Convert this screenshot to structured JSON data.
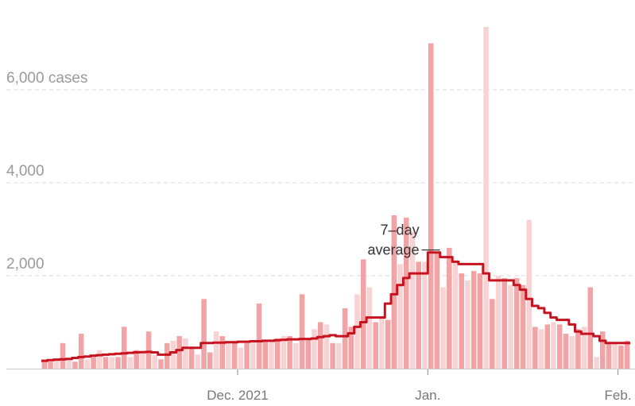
{
  "chart_data": {
    "type": "bar",
    "title": "",
    "xlabel": "",
    "ylabel": "",
    "ylim": [
      0,
      7800
    ],
    "y_ticks": [
      {
        "value": 2000,
        "label": "2,000"
      },
      {
        "value": 4000,
        "label": "4,000"
      },
      {
        "value": 6000,
        "label": "6,000 cases"
      }
    ],
    "x_ticks": [
      {
        "index": 32,
        "label": "Dec. 2021"
      },
      {
        "index": 63,
        "label": "Jan."
      },
      {
        "index": 94,
        "label": "Feb."
      }
    ],
    "grid": true,
    "colors": {
      "bar": "#f2a3a6",
      "bar_light": "#f8d3d4",
      "average_line": "#c7131f",
      "grid": "#d9d9d9",
      "axis": "#cccccc"
    },
    "series": [
      {
        "kind": "daily",
        "values": [
          150,
          150,
          200,
          550,
          200,
          150,
          750,
          200,
          250,
          400,
          250,
          250,
          250,
          900,
          250,
          400,
          350,
          800,
          300,
          200,
          550,
          600,
          700,
          650,
          450,
          300,
          1500,
          350,
          800,
          700,
          600,
          600,
          450,
          550,
          600,
          1400,
          600,
          600,
          650,
          700,
          700,
          550,
          1600,
          650,
          850,
          1000,
          950,
          550,
          550,
          1300,
          900,
          1600,
          2350,
          1750,
          1000,
          1100,
          1050,
          3300,
          2250,
          3250,
          2950,
          2300,
          2300,
          7000,
          2500,
          1750,
          2600,
          2300,
          2050,
          1900,
          2100,
          2050,
          7350,
          1500,
          2000,
          1950,
          1800,
          1950,
          1800,
          3200,
          900,
          850,
          950,
          1000,
          950,
          750,
          700,
          850,
          900,
          1750,
          250,
          800,
          550,
          550,
          500,
          600
        ],
        "light_days": [
          2,
          4,
          7,
          9,
          11,
          14,
          16,
          18,
          21,
          23,
          25,
          28,
          30,
          32,
          34,
          37,
          39,
          41,
          44,
          46,
          48,
          51,
          53,
          55,
          58,
          60,
          62,
          65,
          67,
          69,
          72,
          74,
          76,
          79,
          81,
          83,
          86,
          88,
          90,
          93
        ]
      },
      {
        "name": "7-day average",
        "kind": "average",
        "values": [
          170,
          185,
          195,
          200,
          210,
          230,
          250,
          260,
          280,
          290,
          300,
          310,
          320,
          330,
          340,
          350,
          355,
          360,
          350,
          300,
          300,
          350,
          400,
          450,
          450,
          450,
          550,
          550,
          560,
          560,
          570,
          570,
          580,
          580,
          590,
          590,
          600,
          600,
          610,
          620,
          630,
          630,
          640,
          640,
          650,
          680,
          700,
          720,
          700,
          700,
          760,
          900,
          1000,
          1100,
          1100,
          1100,
          1400,
          1600,
          1800,
          1950,
          2050,
          2050,
          2050,
          2500,
          2500,
          2400,
          2400,
          2300,
          2250,
          2250,
          2250,
          2250,
          2050,
          1900,
          1900,
          1900,
          1900,
          1800,
          1700,
          1500,
          1350,
          1300,
          1200,
          1100,
          1050,
          1050,
          950,
          800,
          750,
          750,
          700,
          600,
          550,
          550,
          550,
          550
        ]
      }
    ],
    "annotations": [
      {
        "lines": [
          "7–day",
          "average"
        ],
        "index": 65
      }
    ]
  }
}
